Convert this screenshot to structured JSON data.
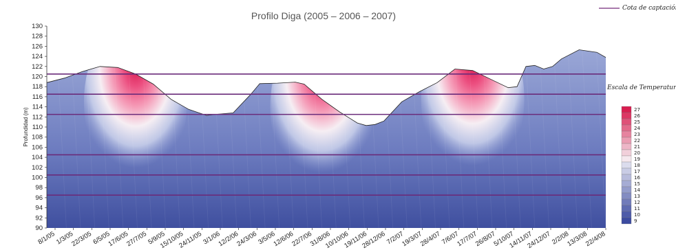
{
  "chart_data": {
    "type": "area",
    "title": "Profilo Diga (2005 – 2006 – 2007)",
    "ylabel": "Profundidad (m)",
    "ylim": [
      90,
      130
    ],
    "yticks": [
      90,
      92,
      94,
      96,
      98,
      100,
      102,
      104,
      106,
      108,
      110,
      112,
      114,
      116,
      118,
      120,
      122,
      124,
      126,
      128,
      130
    ],
    "x_ticks": [
      "8/1/05",
      "1/3/05",
      "22/3/05",
      "6/5/05",
      "17/6/05",
      "27/7/05",
      "5/9/05",
      "15/10/05",
      "24/11/05",
      "3/1/06",
      "12/2/06",
      "24/3/06",
      "3/5/06",
      "12/6/06",
      "22/7/06",
      "31/8/06",
      "10/10/06",
      "19/11/06",
      "28/12/06",
      "7/2/07",
      "19/3/07",
      "28/4/07",
      "7/6/07",
      "17/7/07",
      "26/8/07",
      "5/10/07",
      "14/11/07",
      "24/12/07",
      "2/2/08",
      "13/3/08",
      "22/4/08"
    ],
    "surface_level": [
      [
        0,
        118.8
      ],
      [
        2,
        119.7
      ],
      [
        4,
        121.0
      ],
      [
        6,
        122.0
      ],
      [
        8,
        121.8
      ],
      [
        10,
        120.5
      ],
      [
        12,
        118.5
      ],
      [
        14,
        115.5
      ],
      [
        16,
        113.5
      ],
      [
        18,
        112.3
      ],
      [
        19,
        112.5
      ],
      [
        21,
        112.8
      ],
      [
        23,
        116.5
      ],
      [
        24,
        118.6
      ],
      [
        26,
        118.7
      ],
      [
        28,
        118.9
      ],
      [
        29,
        118.5
      ],
      [
        31,
        115.5
      ],
      [
        33,
        113.0
      ],
      [
        35,
        110.8
      ],
      [
        36,
        110.3
      ],
      [
        37,
        110.5
      ],
      [
        38,
        111.2
      ],
      [
        40,
        115.0
      ],
      [
        42,
        117.0
      ],
      [
        44,
        118.8
      ],
      [
        46,
        121.5
      ],
      [
        48,
        121.2
      ],
      [
        50,
        119.5
      ],
      [
        52,
        117.8
      ],
      [
        53,
        118.0
      ],
      [
        54,
        122.0
      ],
      [
        55,
        122.2
      ],
      [
        56,
        121.5
      ],
      [
        57,
        122.0
      ],
      [
        58,
        123.5
      ],
      [
        60,
        125.3
      ],
      [
        62,
        124.8
      ],
      [
        63,
        123.8
      ]
    ],
    "surface_level_xrange": [
      0,
      63
    ],
    "reference_lines": {
      "name": "Cota de captación",
      "levels": [
        120.5,
        116.5,
        112.5,
        104.5,
        100.5,
        96.5
      ]
    },
    "color_scale": {
      "label": "Escala de Temperatura (°C)",
      "values": [
        27,
        26,
        25,
        24,
        23,
        22,
        21,
        20,
        19,
        18,
        17,
        16,
        15,
        14,
        13,
        12,
        11,
        10,
        9
      ]
    },
    "warm_cores": [
      {
        "x": 10,
        "y": 115,
        "max_temp": 26
      },
      {
        "x": 31,
        "y": 114,
        "max_temp": 26
      },
      {
        "x": 48,
        "y": 115.5,
        "max_temp": 26
      }
    ],
    "colors": {
      "cold": "#3b4f9e",
      "mid": "#f2f2f8",
      "warm": "#e8336a",
      "line": "#6a2b7a"
    }
  }
}
